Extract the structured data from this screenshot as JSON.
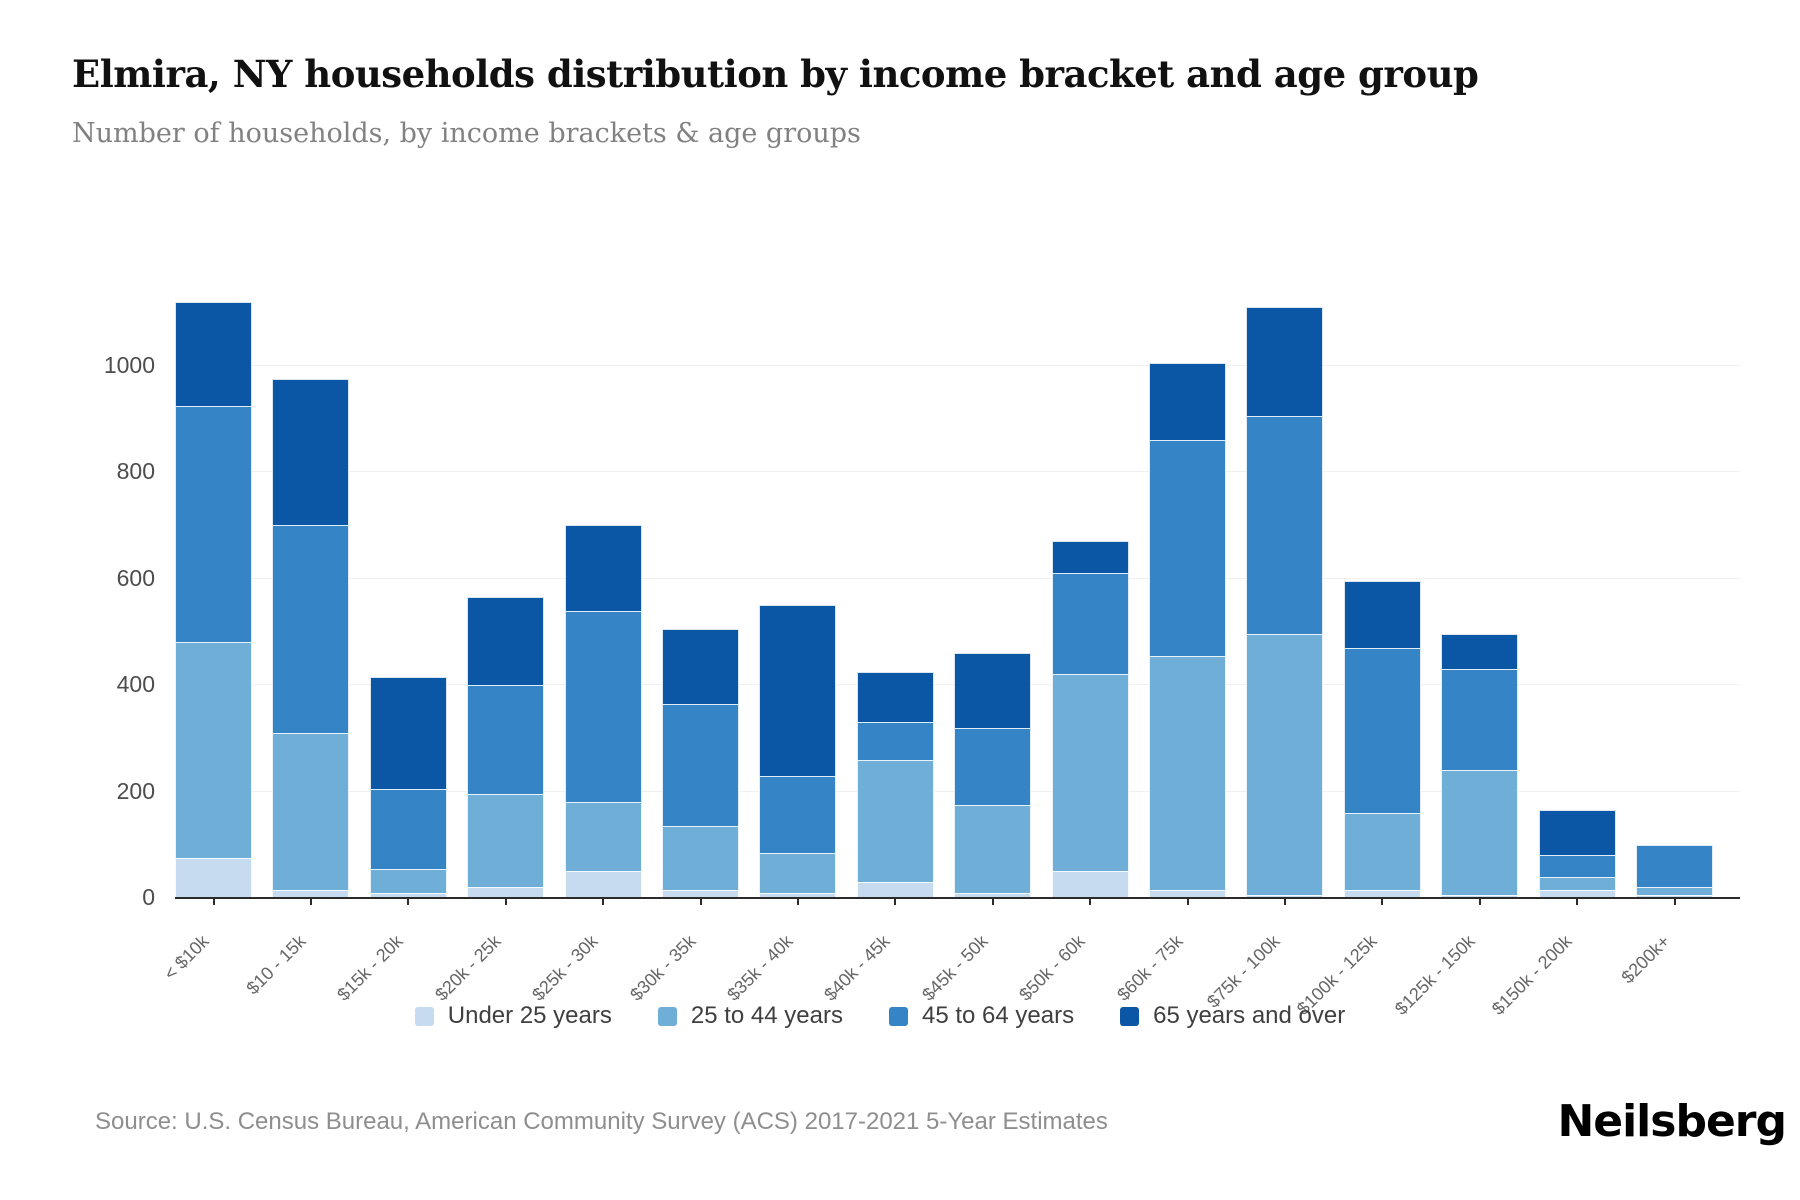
{
  "header": {
    "title": "Elmira, NY households distribution by income bracket and age group",
    "subtitle": "Number of households, by income brackets & age groups"
  },
  "chart_data": {
    "type": "bar",
    "stacked": true,
    "title": "Elmira, NY households distribution by income bracket and age group",
    "xlabel": "",
    "ylabel": "",
    "ylim": [
      0,
      1217
    ],
    "yticks": [
      0,
      200,
      400,
      600,
      800,
      1000
    ],
    "grid": "horizontal",
    "legend_position": "bottom",
    "categories": [
      "< $10k",
      "$10 - 15k",
      "$15k - 20k",
      "$20k - 25k",
      "$25k - 30k",
      "$30k - 35k",
      "$35k - 40k",
      "$40k - 45k",
      "$45k - 50k",
      "$50k - 60k",
      "$60k - 75k",
      "$75k - 100k",
      "$100k - 125k",
      "$125k - 150k",
      "$150k - 200k",
      "$200k+"
    ],
    "series": [
      {
        "name": "Under 25 years",
        "color": "#c6dbef",
        "values": [
          75,
          15,
          10,
          20,
          50,
          15,
          10,
          30,
          10,
          50,
          15,
          5,
          15,
          5,
          15,
          5
        ]
      },
      {
        "name": "25 to 44 years",
        "color": "#6faed7",
        "values": [
          405,
          295,
          45,
          175,
          130,
          120,
          75,
          230,
          165,
          370,
          440,
          490,
          145,
          235,
          25,
          15
        ]
      },
      {
        "name": "45 to 64 years",
        "color": "#3584c6",
        "values": [
          445,
          390,
          150,
          205,
          360,
          230,
          145,
          70,
          145,
          190,
          405,
          410,
          310,
          190,
          40,
          80
        ]
      },
      {
        "name": "65 years and over",
        "color": "#0b57a6",
        "values": [
          195,
          275,
          210,
          165,
          160,
          140,
          320,
          95,
          140,
          60,
          145,
          205,
          125,
          65,
          85,
          0
        ]
      }
    ],
    "totals": [
      1120,
      975,
      415,
      565,
      700,
      505,
      550,
      425,
      460,
      670,
      1005,
      1110,
      595,
      495,
      165,
      100
    ]
  },
  "footer": {
    "source": "Source: U.S. Census Bureau, American Community Survey (ACS) 2017-2021 5-Year Estimates",
    "logo": "Neilsberg"
  }
}
